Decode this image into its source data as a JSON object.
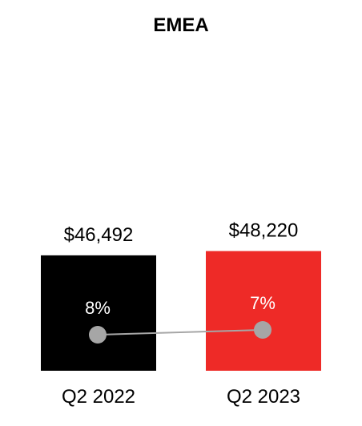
{
  "chart_data": {
    "type": "bar",
    "title": "EMEA",
    "categories": [
      "Q2 2022",
      "Q2 2023"
    ],
    "values": [
      46492,
      48220
    ],
    "value_labels": [
      "$46,492",
      "$48,220"
    ],
    "bar_colors": [
      "#000000",
      "#ee2a27"
    ],
    "secondary_series": {
      "type": "line",
      "values": [
        8,
        7
      ],
      "labels": [
        "8%",
        "7%"
      ],
      "marker_color": "#a6a6a6",
      "line_color": "#a6a6a6"
    },
    "ylim": [
      0,
      60000
    ],
    "grid": false,
    "legend": "none"
  }
}
